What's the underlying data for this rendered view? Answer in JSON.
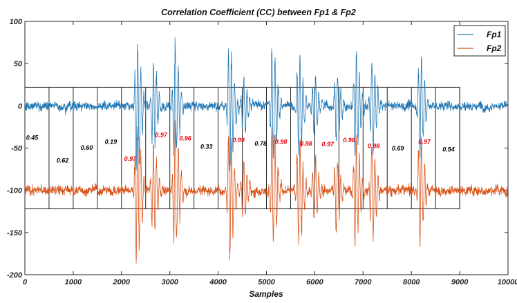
{
  "chart_data": {
    "type": "line",
    "title": "Correlation Coefficient (CC) between Fp1 & Fp2",
    "xlabel": "Samples",
    "ylabel": "",
    "xlim": [
      0,
      10000
    ],
    "ylim": [
      -200,
      100
    ],
    "xticks": [
      0,
      1000,
      2000,
      3000,
      4000,
      5000,
      6000,
      7000,
      8000,
      9000,
      10000
    ],
    "yticks": [
      -200,
      -150,
      -100,
      -50,
      0,
      50,
      100
    ],
    "legend_position": "top-right",
    "series": [
      {
        "name": "Fp1",
        "color": "#1f77b4",
        "baseline": 0
      },
      {
        "name": "Fp2",
        "color": "#d95319",
        "baseline": -100
      }
    ],
    "segments": {
      "y_range": [
        -122,
        22
      ],
      "boundaries": [
        500,
        1000,
        1500,
        2000,
        2500,
        3000,
        3500,
        4000,
        4500,
        5000,
        5500,
        6000,
        6500,
        7000,
        7500,
        8000,
        8500,
        9000
      ]
    },
    "cc_values": [
      {
        "x": 150,
        "y": -40,
        "text": "0.45",
        "color": "#000000"
      },
      {
        "x": 780,
        "y": -67,
        "text": "0.62",
        "color": "#000000"
      },
      {
        "x": 1280,
        "y": -52,
        "text": "0.60",
        "color": "#000000"
      },
      {
        "x": 1780,
        "y": -45,
        "text": "0.19",
        "color": "#000000"
      },
      {
        "x": 2180,
        "y": -65,
        "text": "0.97",
        "color": "#e8000b"
      },
      {
        "x": 2820,
        "y": -37,
        "text": "0.97",
        "color": "#e8000b"
      },
      {
        "x": 3320,
        "y": -41,
        "text": "0.96",
        "color": "#e8000b"
      },
      {
        "x": 3760,
        "y": -51,
        "text": "0.33",
        "color": "#000000"
      },
      {
        "x": 4420,
        "y": -43,
        "text": "0.99",
        "color": "#e8000b"
      },
      {
        "x": 4880,
        "y": -47,
        "text": "0.78",
        "color": "#000000"
      },
      {
        "x": 5300,
        "y": -45,
        "text": "0.98",
        "color": "#e8000b"
      },
      {
        "x": 5820,
        "y": -47,
        "text": "0.98",
        "color": "#e8000b"
      },
      {
        "x": 6270,
        "y": -48,
        "text": "0.97",
        "color": "#e8000b"
      },
      {
        "x": 6710,
        "y": -43,
        "text": "0.98",
        "color": "#e8000b"
      },
      {
        "x": 7220,
        "y": -50,
        "text": "0.98",
        "color": "#e8000b"
      },
      {
        "x": 7720,
        "y": -53,
        "text": "0.69",
        "color": "#000000"
      },
      {
        "x": 8270,
        "y": -45,
        "text": "0.97",
        "color": "#e8000b"
      },
      {
        "x": 8770,
        "y": -54,
        "text": "0.54",
        "color": "#000000"
      }
    ],
    "bursts": [
      {
        "center": 2310,
        "amplitude": 75
      },
      {
        "center": 2650,
        "amplitude": 45
      },
      {
        "center": 3100,
        "amplitude": 70
      },
      {
        "center": 4230,
        "amplitude": 72
      },
      {
        "center": 4520,
        "amplitude": 30
      },
      {
        "center": 5120,
        "amplitude": 65
      },
      {
        "center": 5660,
        "amplitude": 58
      },
      {
        "center": 5980,
        "amplitude": 35
      },
      {
        "center": 6440,
        "amplitude": 40
      },
      {
        "center": 6840,
        "amplitude": 60
      },
      {
        "center": 7180,
        "amplitude": 55
      },
      {
        "center": 8170,
        "amplitude": 55
      }
    ]
  }
}
